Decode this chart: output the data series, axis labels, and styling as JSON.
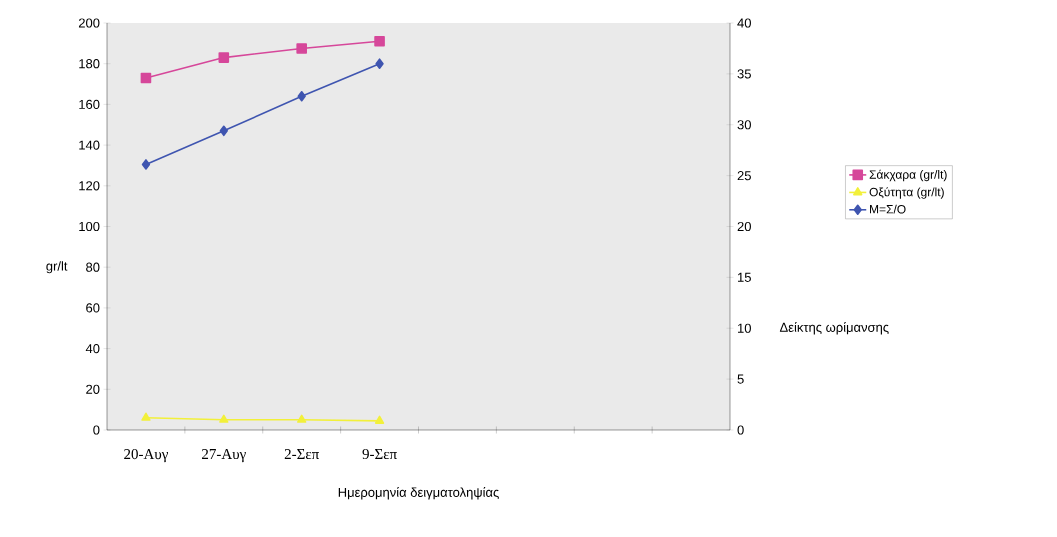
{
  "chart_data": {
    "type": "line",
    "xlabel": "Ημερομηνία δειγματοληψίας",
    "ylabel": "gr/lt",
    "y2label": "Δείκτης ωρίμανσης",
    "categories": [
      "20-Αυγ",
      "27-Αυγ",
      "2-Σεπ",
      "9-Σεπ",
      null,
      null,
      null,
      null
    ],
    "series": [
      {
        "name": "Σάκχαρα (gr/lt)",
        "color": "#d6479a",
        "marker": "square",
        "values": [
          173,
          183,
          187.5,
          191,
          null,
          null,
          null,
          null
        ]
      },
      {
        "name": "Οξύτητα (gr/lt)",
        "color": "#f2f03a",
        "marker": "triangle",
        "values": [
          6,
          5,
          5,
          4.5,
          null,
          null,
          null,
          null
        ]
      },
      {
        "name": "M=Σ/Ο",
        "color": "#3f55b0",
        "marker": "diamond",
        "axis": "y2",
        "values": [
          26.1,
          29.4,
          32.8,
          36,
          null,
          null,
          null,
          null
        ]
      }
    ],
    "ylim": [
      0,
      200
    ],
    "yticks": [
      0,
      20,
      40,
      60,
      80,
      100,
      120,
      140,
      160,
      180,
      200
    ],
    "y2lim": [
      0,
      40
    ],
    "y2ticks": [
      0,
      5,
      10,
      15,
      20,
      25,
      30,
      35,
      40
    ],
    "legend": "right"
  }
}
